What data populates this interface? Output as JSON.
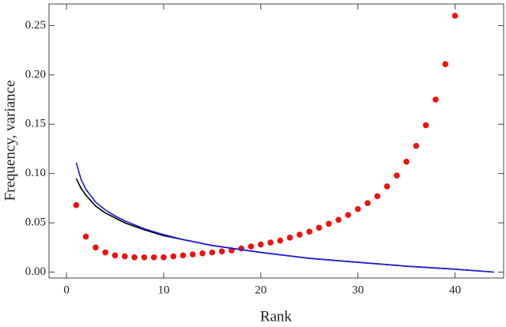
{
  "chart_data": {
    "type": "scatter",
    "x_label": "Rank",
    "y_label": "Frequency,   variance",
    "xlim": [
      -1.8,
      45
    ],
    "ylim": [
      -0.006,
      0.272
    ],
    "xticks": [
      0,
      10,
      20,
      30,
      40
    ],
    "yticks": [
      {
        "value": 0,
        "label": "0.00"
      },
      {
        "value": 0.05,
        "label": "0.05"
      },
      {
        "value": 0.1,
        "label": "0.10"
      },
      {
        "value": 0.15,
        "label": "0.15"
      },
      {
        "value": 0.2,
        "label": "0.20"
      },
      {
        "value": 0.25,
        "label": "0.25"
      }
    ],
    "series": [
      {
        "mode": "markers",
        "color": "#ee1111",
        "x": [
          1,
          2,
          3,
          4,
          5,
          6,
          7,
          8,
          9,
          10,
          11,
          12,
          13,
          14,
          15,
          16,
          17,
          18,
          19,
          20,
          21,
          22,
          23,
          24,
          25,
          26,
          27,
          28,
          29,
          30,
          31,
          32,
          33,
          34,
          35,
          36,
          37,
          38,
          39,
          40
        ],
        "values": [
          0.068,
          0.036,
          0.025,
          0.02,
          0.017,
          0.016,
          0.015,
          0.015,
          0.015,
          0.015,
          0.016,
          0.017,
          0.018,
          0.019,
          0.02,
          0.021,
          0.022,
          0.024,
          0.026,
          0.028,
          0.03,
          0.032,
          0.035,
          0.038,
          0.041,
          0.045,
          0.049,
          0.053,
          0.058,
          0.064,
          0.07,
          0.077,
          0.087,
          0.098,
          0.112,
          0.128,
          0.149,
          0.175,
          0.211,
          0.26
        ]
      },
      {
        "mode": "lines",
        "color": "#000000",
        "x": [
          1,
          1.5,
          2,
          3,
          4,
          5,
          6,
          8,
          10,
          12,
          15,
          20,
          25,
          30,
          35,
          40,
          44
        ],
        "values": [
          0.095,
          0.085,
          0.078,
          0.067,
          0.06,
          0.055,
          0.05,
          0.043,
          0.037,
          0.033,
          0.027,
          0.02,
          0.014,
          0.01,
          0.006,
          0.003,
          0
        ]
      },
      {
        "mode": "lines",
        "color": "#1a1adb",
        "x": [
          1,
          1.5,
          2,
          3,
          4,
          5,
          6,
          8,
          10,
          12,
          15,
          20,
          25,
          30,
          35,
          40,
          44
        ],
        "values": [
          0.111,
          0.094,
          0.084,
          0.071,
          0.063,
          0.057,
          0.052,
          0.044,
          0.038,
          0.033,
          0.027,
          0.02,
          0.014,
          0.01,
          0.006,
          0.003,
          0
        ]
      }
    ]
  }
}
